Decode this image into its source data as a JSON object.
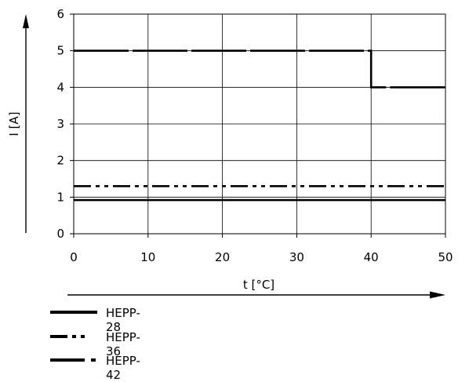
{
  "chart_data": {
    "type": "line",
    "xlabel": "t [°C]",
    "ylabel": "I [A]",
    "xlim": [
      0,
      50
    ],
    "ylim": [
      0,
      6
    ],
    "x_ticks": [
      "0",
      "10",
      "20",
      "30",
      "40",
      "50"
    ],
    "y_ticks": [
      "0",
      "1",
      "2",
      "3",
      "4",
      "5",
      "6"
    ],
    "grid": true,
    "legend_position": "bottom-left",
    "series": [
      {
        "name": "HEPP-28",
        "style": "solid",
        "x": [
          0,
          50
        ],
        "y": [
          0.92,
          0.92
        ]
      },
      {
        "name": "HEPP-36",
        "style": "dash-dot-dot",
        "x": [
          0,
          50
        ],
        "y": [
          1.3,
          1.3
        ]
      },
      {
        "name": "HEPP-42",
        "style": "long-dash",
        "x": [
          0,
          40,
          40,
          50
        ],
        "y": [
          5.0,
          5.0,
          4.0,
          4.0
        ]
      }
    ]
  }
}
